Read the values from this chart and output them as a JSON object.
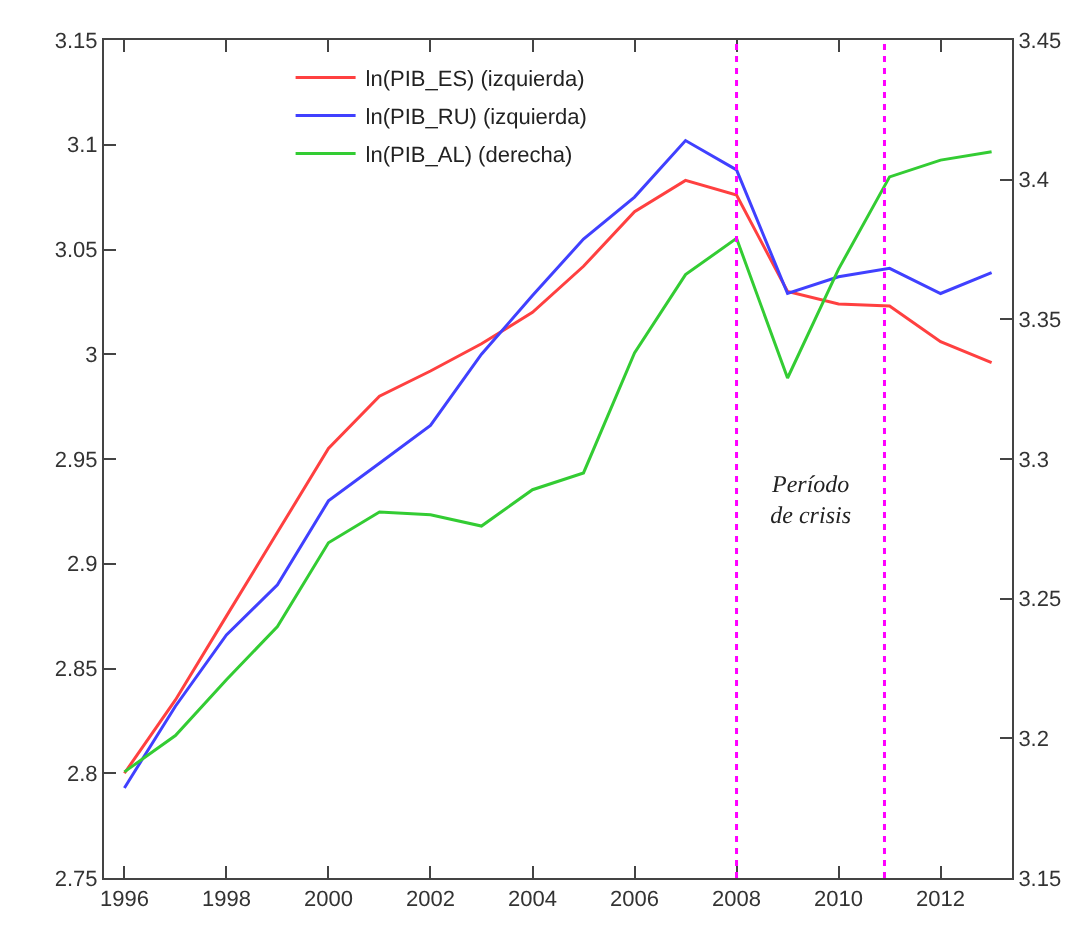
{
  "chart_data": {
    "type": "line",
    "x": [
      1996,
      1997,
      1998,
      1999,
      2000,
      2001,
      2002,
      2003,
      2004,
      2005,
      2006,
      2007,
      2008,
      2009,
      2010,
      2011,
      2012,
      2013
    ],
    "series": [
      {
        "name": "ln(PIB_ES) (izquierda)",
        "color": "#ff4040",
        "values": [
          2.8,
          2.835,
          2.875,
          2.915,
          2.955,
          2.98,
          2.992,
          3.005,
          3.02,
          3.042,
          3.068,
          3.083,
          3.076,
          3.03,
          3.024,
          3.023,
          3.006,
          2.996
        ]
      },
      {
        "name": "ln(PIB_RU) (izquierda)",
        "color": "#4040ff",
        "values": [
          2.793,
          2.832,
          2.866,
          2.89,
          2.93,
          2.948,
          2.966,
          3.0,
          3.028,
          3.055,
          3.075,
          3.102,
          3.088,
          3.029,
          3.037,
          3.041,
          3.029,
          3.039
        ]
      },
      {
        "name": "ln(PIB_AL) (derecha)",
        "color": "#33cc33",
        "axis": "y2",
        "values": [
          3.188,
          3.201,
          3.221,
          3.24,
          3.27,
          3.281,
          3.28,
          3.276,
          3.289,
          3.295,
          3.338,
          3.366,
          3.379,
          3.329,
          3.368,
          3.401,
          3.407,
          3.41
        ]
      }
    ],
    "xlim": [
      1995.6,
      2013.4
    ],
    "xticks": [
      1996,
      1998,
      2000,
      2002,
      2004,
      2006,
      2008,
      2010,
      2012
    ],
    "ylim": [
      2.75,
      3.15
    ],
    "yticks": [
      2.75,
      2.8,
      2.85,
      2.9,
      2.95,
      3,
      3.05,
      3.1,
      3.15
    ],
    "y2lim": [
      3.15,
      3.45
    ],
    "y2ticks": [
      3.15,
      3.2,
      3.25,
      3.3,
      3.35,
      3.4,
      3.45
    ],
    "ref_lines": [
      {
        "axis": "x",
        "value": 2008,
        "color": "#ff00ff",
        "line_style": "dotted"
      },
      {
        "axis": "x",
        "value": 2010.9,
        "color": "#ff00ff",
        "line_style": "dotted"
      }
    ],
    "annotations": [
      "Período\nde crisis"
    ],
    "legend": "top left",
    "line_style": "solid",
    "marker": "none"
  }
}
